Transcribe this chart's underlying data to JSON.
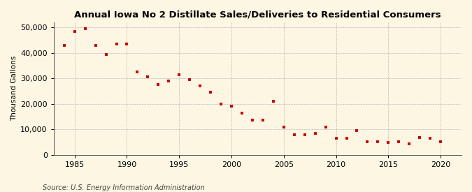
{
  "title": "Annual Iowa No 2 Distillate Sales/Deliveries to Residential Consumers",
  "ylabel": "Thousand Gallons",
  "source": "Source: U.S. Energy Information Administration",
  "background_color": "#fdf6e3",
  "plot_bg_color": "#fdf6e3",
  "marker_color": "#cc0000",
  "grid_color": "#bbbbbb",
  "xlim": [
    1983,
    2022
  ],
  "ylim": [
    0,
    52000
  ],
  "yticks": [
    0,
    10000,
    20000,
    30000,
    40000,
    50000
  ],
  "xticks": [
    1985,
    1990,
    1995,
    2000,
    2005,
    2010,
    2015,
    2020
  ],
  "years": [
    1984,
    1985,
    1986,
    1987,
    1988,
    1989,
    1990,
    1991,
    1992,
    1993,
    1994,
    1995,
    1996,
    1997,
    1998,
    1999,
    2000,
    2001,
    2002,
    2003,
    2004,
    2005,
    2006,
    2007,
    2008,
    2009,
    2010,
    2011,
    2012,
    2013,
    2014,
    2015,
    2016,
    2017,
    2018,
    2019,
    2020
  ],
  "values": [
    43000,
    48500,
    49500,
    43000,
    39500,
    43500,
    43500,
    32500,
    30500,
    27500,
    29000,
    31500,
    29500,
    27000,
    24500,
    20000,
    19000,
    16500,
    13500,
    13500,
    21000,
    10800,
    7800,
    7800,
    8500,
    11000,
    6500,
    6500,
    9500,
    5000,
    5000,
    4800,
    5200,
    4200,
    6800,
    6500,
    5000
  ]
}
